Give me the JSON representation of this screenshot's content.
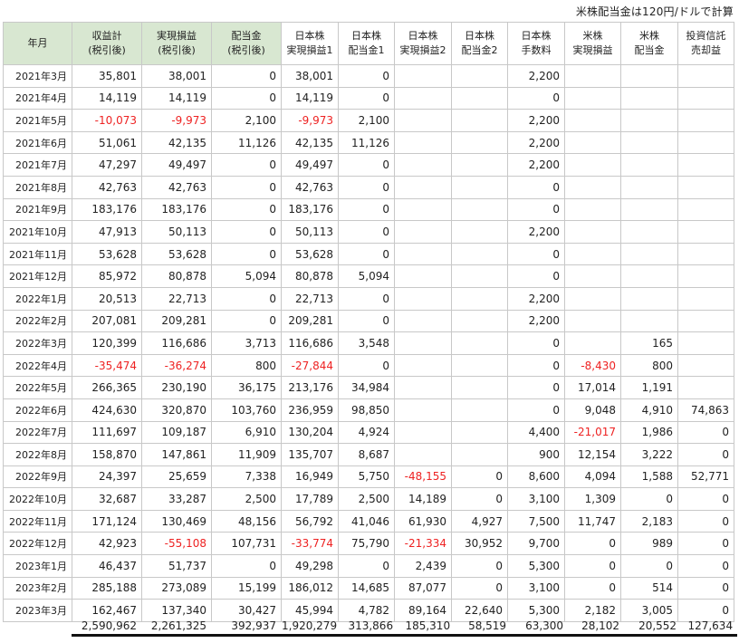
{
  "note": "米株配当金は120円/ドルで計算",
  "headers": [
    [
      "年月"
    ],
    [
      "収益計",
      "(税引後)"
    ],
    [
      "実現損益",
      "(税引後)"
    ],
    [
      "配当金",
      "(税引後)"
    ],
    [
      "日本株",
      "実現損益1"
    ],
    [
      "日本株",
      "配当金1"
    ],
    [
      "日本株",
      "実現損益2"
    ],
    [
      "日本株",
      "配当金2"
    ],
    [
      "日本株",
      "手数料"
    ],
    [
      "米株",
      "実現損益"
    ],
    [
      "米株",
      "配当金"
    ],
    [
      "投資信託",
      "売却益"
    ]
  ],
  "rows": [
    [
      "2021年3月",
      "35,801",
      "38,001",
      "0",
      "38,001",
      "0",
      "",
      "",
      "2,200",
      "",
      "",
      ""
    ],
    [
      "2021年4月",
      "14,119",
      "14,119",
      "0",
      "14,119",
      "0",
      "",
      "",
      "0",
      "",
      "",
      ""
    ],
    [
      "2021年5月",
      "-10,073",
      "-9,973",
      "2,100",
      "-9,973",
      "2,100",
      "",
      "",
      "2,200",
      "",
      "",
      ""
    ],
    [
      "2021年6月",
      "51,061",
      "42,135",
      "11,126",
      "42,135",
      "11,126",
      "",
      "",
      "2,200",
      "",
      "",
      ""
    ],
    [
      "2021年7月",
      "47,297",
      "49,497",
      "0",
      "49,497",
      "0",
      "",
      "",
      "2,200",
      "",
      "",
      ""
    ],
    [
      "2021年8月",
      "42,763",
      "42,763",
      "0",
      "42,763",
      "0",
      "",
      "",
      "0",
      "",
      "",
      ""
    ],
    [
      "2021年9月",
      "183,176",
      "183,176",
      "0",
      "183,176",
      "0",
      "",
      "",
      "0",
      "",
      "",
      ""
    ],
    [
      "2021年10月",
      "47,913",
      "50,113",
      "0",
      "50,113",
      "0",
      "",
      "",
      "2,200",
      "",
      "",
      ""
    ],
    [
      "2021年11月",
      "53,628",
      "53,628",
      "0",
      "53,628",
      "0",
      "",
      "",
      "0",
      "",
      "",
      ""
    ],
    [
      "2021年12月",
      "85,972",
      "80,878",
      "5,094",
      "80,878",
      "5,094",
      "",
      "",
      "0",
      "",
      "",
      ""
    ],
    [
      "2022年1月",
      "20,513",
      "22,713",
      "0",
      "22,713",
      "0",
      "",
      "",
      "2,200",
      "",
      "",
      ""
    ],
    [
      "2022年2月",
      "207,081",
      "209,281",
      "0",
      "209,281",
      "0",
      "",
      "",
      "2,200",
      "",
      "",
      ""
    ],
    [
      "2022年3月",
      "120,399",
      "116,686",
      "3,713",
      "116,686",
      "3,548",
      "",
      "",
      "0",
      "",
      "165",
      ""
    ],
    [
      "2022年4月",
      "-35,474",
      "-36,274",
      "800",
      "-27,844",
      "0",
      "",
      "",
      "0",
      "-8,430",
      "800",
      ""
    ],
    [
      "2022年5月",
      "266,365",
      "230,190",
      "36,175",
      "213,176",
      "34,984",
      "",
      "",
      "0",
      "17,014",
      "1,191",
      ""
    ],
    [
      "2022年6月",
      "424,630",
      "320,870",
      "103,760",
      "236,959",
      "98,850",
      "",
      "",
      "0",
      "9,048",
      "4,910",
      "74,863"
    ],
    [
      "2022年7月",
      "111,697",
      "109,187",
      "6,910",
      "130,204",
      "4,924",
      "",
      "",
      "4,400",
      "-21,017",
      "1,986",
      "0"
    ],
    [
      "2022年8月",
      "158,870",
      "147,861",
      "11,909",
      "135,707",
      "8,687",
      "",
      "",
      "900",
      "12,154",
      "3,222",
      "0"
    ],
    [
      "2022年9月",
      "24,397",
      "25,659",
      "7,338",
      "16,949",
      "5,750",
      "-48,155",
      "0",
      "8,600",
      "4,094",
      "1,588",
      "52,771"
    ],
    [
      "2022年10月",
      "32,687",
      "33,287",
      "2,500",
      "17,789",
      "2,500",
      "14,189",
      "0",
      "3,100",
      "1,309",
      "0",
      "0"
    ],
    [
      "2022年11月",
      "171,124",
      "130,469",
      "48,156",
      "56,792",
      "41,046",
      "61,930",
      "4,927",
      "7,500",
      "11,747",
      "2,183",
      "0"
    ],
    [
      "2022年12月",
      "42,923",
      "-55,108",
      "107,731",
      "-33,774",
      "75,790",
      "-21,334",
      "30,952",
      "9,700",
      "0",
      "989",
      "0"
    ],
    [
      "2023年1月",
      "46,437",
      "51,737",
      "0",
      "49,298",
      "0",
      "2,439",
      "0",
      "5,300",
      "0",
      "0",
      "0"
    ],
    [
      "2023年2月",
      "285,188",
      "273,089",
      "15,199",
      "186,012",
      "14,685",
      "87,077",
      "0",
      "3,100",
      "0",
      "514",
      "0"
    ],
    [
      "2023年3月",
      "162,467",
      "137,340",
      "30,427",
      "45,994",
      "4,782",
      "89,164",
      "22,640",
      "5,300",
      "2,182",
      "3,005",
      "0"
    ]
  ],
  "totals": [
    "2,590,962",
    "2,261,325",
    "392,937",
    "1,920,279",
    "313,866",
    "185,310",
    "58,519",
    "63,300",
    "28,102",
    "20,552",
    "127,634"
  ],
  "colors": {
    "header_green": "#d8e7d1",
    "negative": "#ee2222",
    "grid": "#c8c8c8"
  }
}
